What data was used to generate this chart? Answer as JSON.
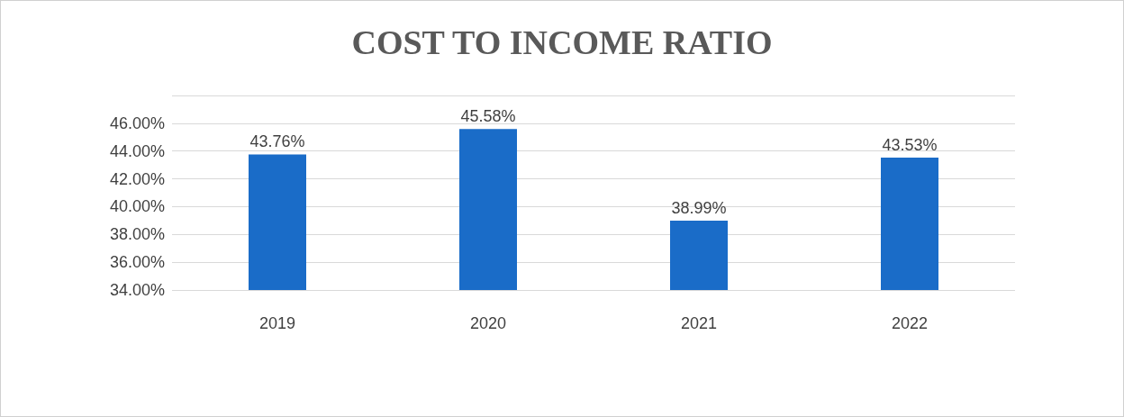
{
  "chart_data": {
    "type": "bar",
    "title": "COST TO INCOME RATIO",
    "categories": [
      "2019",
      "2020",
      "2021",
      "2022"
    ],
    "values": [
      43.76,
      45.58,
      38.99,
      43.53
    ],
    "value_labels": [
      "43.76%",
      "45.58%",
      "38.99%",
      "43.53%"
    ],
    "color": "#1a6cc8",
    "ylim": [
      34,
      48
    ],
    "yticks": [
      {
        "value": 34,
        "label": "34.00%"
      },
      {
        "value": 36,
        "label": "36.00%"
      },
      {
        "value": 38,
        "label": "38.00%"
      },
      {
        "value": 40,
        "label": "40.00%"
      },
      {
        "value": 42,
        "label": "42.00%"
      },
      {
        "value": 44,
        "label": "44.00%"
      },
      {
        "value": 46,
        "label": "46.00%"
      },
      {
        "value": 48,
        "label": null
      }
    ],
    "grid": "y"
  }
}
